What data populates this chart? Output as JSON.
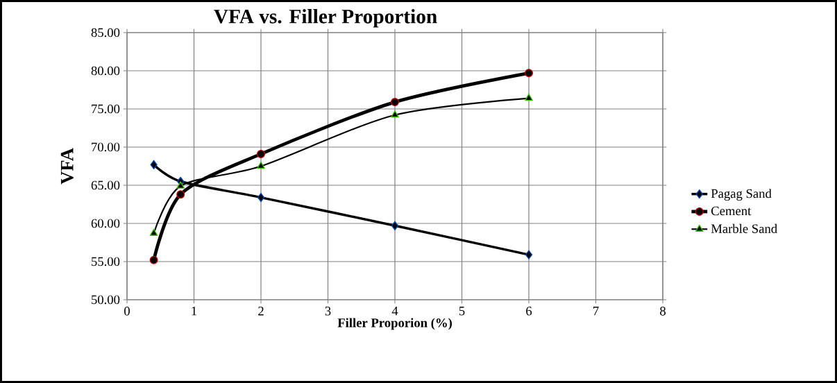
{
  "chart_data": {
    "type": "line",
    "title": "VFA vs. Filler Proportion",
    "xlabel": "Filler Proporion (%)",
    "ylabel": "VFA",
    "x": [
      0.4,
      0.8,
      2,
      4,
      6
    ],
    "series": [
      {
        "name": "Pagag Sand",
        "color": "#000000",
        "marker": "diamond",
        "values": [
          67.7,
          65.5,
          63.4,
          59.7,
          55.9
        ]
      },
      {
        "name": "Cement",
        "color": "#000000",
        "marker": "circle",
        "values": [
          55.2,
          63.8,
          69.1,
          75.9,
          79.7
        ]
      },
      {
        "name": "Marble Sand",
        "color": "#000000",
        "marker": "triangle",
        "values": [
          58.7,
          64.9,
          67.5,
          74.2,
          76.4
        ]
      }
    ],
    "xlim": [
      0,
      8
    ],
    "ylim": [
      50,
      85
    ],
    "xticks": [
      0,
      1,
      2,
      3,
      4,
      5,
      6,
      7,
      8
    ],
    "yticks": [
      {
        "value": 50,
        "label": "50.00"
      },
      {
        "value": 55,
        "label": "55.00"
      },
      {
        "value": 60,
        "label": "60.00"
      },
      {
        "value": 65,
        "label": "65.00"
      },
      {
        "value": 70,
        "label": "70.00"
      },
      {
        "value": 75,
        "label": "75.00"
      },
      {
        "value": 80,
        "label": "80.00"
      },
      {
        "value": 85,
        "label": "85.00"
      }
    ],
    "grid": true,
    "legend": "right",
    "line_style": "solid"
  }
}
